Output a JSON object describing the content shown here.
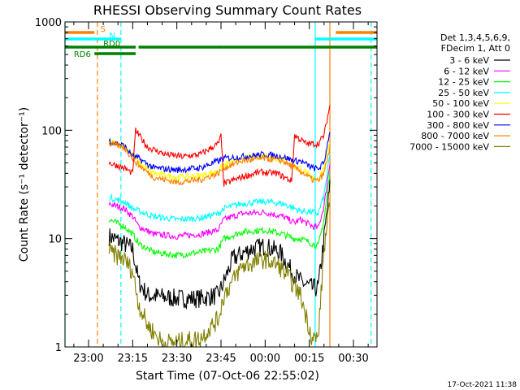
{
  "chart_data": {
    "type": "line",
    "title": "RHESSI Observing Summary Count Rates",
    "xlabel": "Start Time (07-Oct-06 22:55:02)",
    "ylabel": "Count Rate (s⁻¹ detector⁻¹)",
    "y_scale": "log",
    "ylim": [
      1,
      1000
    ],
    "x_range_minutes": [
      -8,
      98
    ],
    "x_ticks": [
      {
        "label": "23:00",
        "t": 0
      },
      {
        "label": "23:15",
        "t": 15
      },
      {
        "label": "23:30",
        "t": 30
      },
      {
        "label": "23:45",
        "t": 45
      },
      {
        "label": "00:00",
        "t": 60
      },
      {
        "label": "00:15",
        "t": 75
      },
      {
        "label": "00:30",
        "t": 90
      }
    ],
    "y_ticks": [
      {
        "label": "1",
        "v": 1
      },
      {
        "label": "10",
        "v": 10
      },
      {
        "label": "100",
        "v": 100
      },
      {
        "label": "1000",
        "v": 1000
      }
    ],
    "legend_header": [
      "Det 1,3,4,5,6,9,",
      "FDecim 1, Att 0"
    ],
    "series": [
      {
        "name": "3 - 6 keV",
        "color": "#000000",
        "points": [
          [
            7,
            10.5
          ],
          [
            12,
            9
          ],
          [
            15,
            8
          ],
          [
            17,
            4
          ],
          [
            20,
            3
          ],
          [
            30,
            2.8
          ],
          [
            38,
            2.8
          ],
          [
            44,
            3
          ],
          [
            46,
            4
          ],
          [
            49,
            6.5
          ],
          [
            55,
            8
          ],
          [
            60,
            8.5
          ],
          [
            65,
            7.5
          ],
          [
            69,
            5
          ],
          [
            72,
            4
          ],
          [
            76,
            3.5
          ],
          [
            78,
            3.5
          ],
          [
            80,
            10
          ],
          [
            82,
            30
          ]
        ]
      },
      {
        "name": "6 - 12 keV",
        "color": "#ff00ff",
        "points": [
          [
            7,
            21
          ],
          [
            12,
            19
          ],
          [
            15,
            16
          ],
          [
            17,
            13
          ],
          [
            22,
            11
          ],
          [
            30,
            10.5
          ],
          [
            38,
            11
          ],
          [
            44,
            12
          ],
          [
            46,
            15
          ],
          [
            52,
            17
          ],
          [
            60,
            17.5
          ],
          [
            66,
            16
          ],
          [
            70,
            14
          ],
          [
            72,
            15
          ],
          [
            76,
            13
          ],
          [
            78,
            12.5
          ],
          [
            80,
            20
          ],
          [
            82,
            50
          ]
        ]
      },
      {
        "name": "12 - 25 keV",
        "color": "#00ff00",
        "points": [
          [
            7,
            15
          ],
          [
            12,
            13
          ],
          [
            15,
            11
          ],
          [
            17,
            9
          ],
          [
            22,
            7.5
          ],
          [
            30,
            7
          ],
          [
            38,
            7.5
          ],
          [
            44,
            8
          ],
          [
            46,
            10
          ],
          [
            52,
            11.5
          ],
          [
            60,
            12
          ],
          [
            66,
            11
          ],
          [
            70,
            10
          ],
          [
            72,
            10
          ],
          [
            76,
            9
          ],
          [
            78,
            8.5
          ],
          [
            80,
            15
          ],
          [
            82,
            40
          ]
        ]
      },
      {
        "name": "25 - 50 keV",
        "color": "#00ffff",
        "points": [
          [
            7,
            24
          ],
          [
            12,
            22
          ],
          [
            15,
            19
          ],
          [
            17,
            18
          ],
          [
            22,
            16
          ],
          [
            30,
            15
          ],
          [
            38,
            15.5
          ],
          [
            44,
            17
          ],
          [
            46,
            19
          ],
          [
            52,
            21
          ],
          [
            60,
            22
          ],
          [
            66,
            21
          ],
          [
            70,
            19
          ],
          [
            72,
            18
          ],
          [
            76,
            17.5
          ],
          [
            78,
            17
          ],
          [
            80,
            25
          ],
          [
            82,
            60
          ]
        ]
      },
      {
        "name": "50 - 100 keV",
        "color": "#ffff00",
        "points": [
          [
            7,
            78
          ],
          [
            12,
            72
          ],
          [
            15,
            60
          ],
          [
            17,
            50
          ],
          [
            22,
            40
          ],
          [
            30,
            37
          ],
          [
            38,
            38
          ],
          [
            44,
            42
          ],
          [
            46,
            48
          ],
          [
            52,
            55
          ],
          [
            60,
            58
          ],
          [
            66,
            54
          ],
          [
            70,
            46
          ],
          [
            72,
            45
          ],
          [
            76,
            36
          ],
          [
            78,
            36
          ],
          [
            80,
            45
          ],
          [
            82,
            80
          ]
        ]
      },
      {
        "name": "100 - 300 keV",
        "color": "#ff0000",
        "points": [
          [
            7,
            50
          ],
          [
            12,
            45
          ],
          [
            15,
            40
          ],
          [
            16,
            100
          ],
          [
            20,
            70
          ],
          [
            26,
            60
          ],
          [
            32,
            57
          ],
          [
            38,
            60
          ],
          [
            44,
            75
          ],
          [
            45,
            88
          ],
          [
            46,
            32
          ],
          [
            52,
            37
          ],
          [
            58,
            41
          ],
          [
            64,
            40
          ],
          [
            69,
            34
          ],
          [
            70,
            90
          ],
          [
            74,
            75
          ],
          [
            78,
            75
          ],
          [
            80,
            90
          ],
          [
            82,
            170
          ]
        ]
      },
      {
        "name": "300 - 800 keV",
        "color": "#0000ff",
        "points": [
          [
            7,
            80
          ],
          [
            12,
            72
          ],
          [
            15,
            58
          ],
          [
            17,
            55
          ],
          [
            22,
            45
          ],
          [
            30,
            43
          ],
          [
            38,
            45
          ],
          [
            44,
            52
          ],
          [
            46,
            55
          ],
          [
            52,
            57
          ],
          [
            60,
            60
          ],
          [
            66,
            57
          ],
          [
            70,
            52
          ],
          [
            72,
            52
          ],
          [
            76,
            45
          ],
          [
            78,
            44
          ],
          [
            80,
            50
          ],
          [
            82,
            100
          ]
        ]
      },
      {
        "name": "800 - 7000 keV",
        "color": "#ff8000",
        "points": [
          [
            7,
            75
          ],
          [
            12,
            70
          ],
          [
            15,
            55
          ],
          [
            17,
            48
          ],
          [
            22,
            37
          ],
          [
            30,
            33
          ],
          [
            38,
            35
          ],
          [
            44,
            40
          ],
          [
            46,
            45
          ],
          [
            52,
            52
          ],
          [
            60,
            55
          ],
          [
            66,
            52
          ],
          [
            70,
            45
          ],
          [
            72,
            42
          ],
          [
            76,
            35
          ],
          [
            78,
            34
          ],
          [
            80,
            40
          ],
          [
            82,
            70
          ]
        ]
      },
      {
        "name": "7000 - 15000 keV",
        "color": "#808000",
        "points": [
          [
            7,
            7.5
          ],
          [
            12,
            6.5
          ],
          [
            15,
            5
          ],
          [
            17,
            2.5
          ],
          [
            20,
            1.6
          ],
          [
            25,
            1.1
          ],
          [
            30,
            1.1
          ],
          [
            38,
            1.2
          ],
          [
            44,
            1.8
          ],
          [
            46,
            3
          ],
          [
            52,
            5.5
          ],
          [
            60,
            6.5
          ],
          [
            65,
            5.5
          ],
          [
            69,
            4
          ],
          [
            72,
            3
          ],
          [
            76,
            1.2
          ],
          [
            78,
            1.2
          ],
          [
            80,
            8
          ],
          [
            82,
            20
          ]
        ]
      }
    ],
    "flag_bars": [
      {
        "label": "S",
        "color": "#ff8000",
        "segments": [
          [
            -8,
            2
          ],
          [
            84,
            98
          ]
        ]
      },
      {
        "label": "N",
        "color": "#00ffff",
        "segments": [
          [
            -8,
            11
          ],
          [
            77,
            98
          ]
        ]
      },
      {
        "label": "RD0",
        "color": "#008000",
        "segments": [
          [
            -8,
            16
          ],
          [
            17,
            46
          ],
          [
            46,
            65
          ],
          [
            65,
            98
          ]
        ]
      },
      {
        "label": "RD6",
        "color": "#008000",
        "segments": [
          [
            2,
            16
          ]
        ]
      }
    ],
    "vertical_markers": [
      {
        "t": -8,
        "color": "#00ffff",
        "style": "solid"
      },
      {
        "t": 3,
        "color": "#ff8000",
        "style": "dashed"
      },
      {
        "t": 11,
        "color": "#00ffff",
        "style": "dashed"
      },
      {
        "t": 77,
        "color": "#00ffff",
        "style": "solid"
      },
      {
        "t": 82,
        "color": "#ff8000",
        "style": "solid"
      },
      {
        "t": 96,
        "color": "#00ffff",
        "style": "dashed"
      }
    ]
  },
  "footer_timestamp": "17-Oct-2021 11:38"
}
